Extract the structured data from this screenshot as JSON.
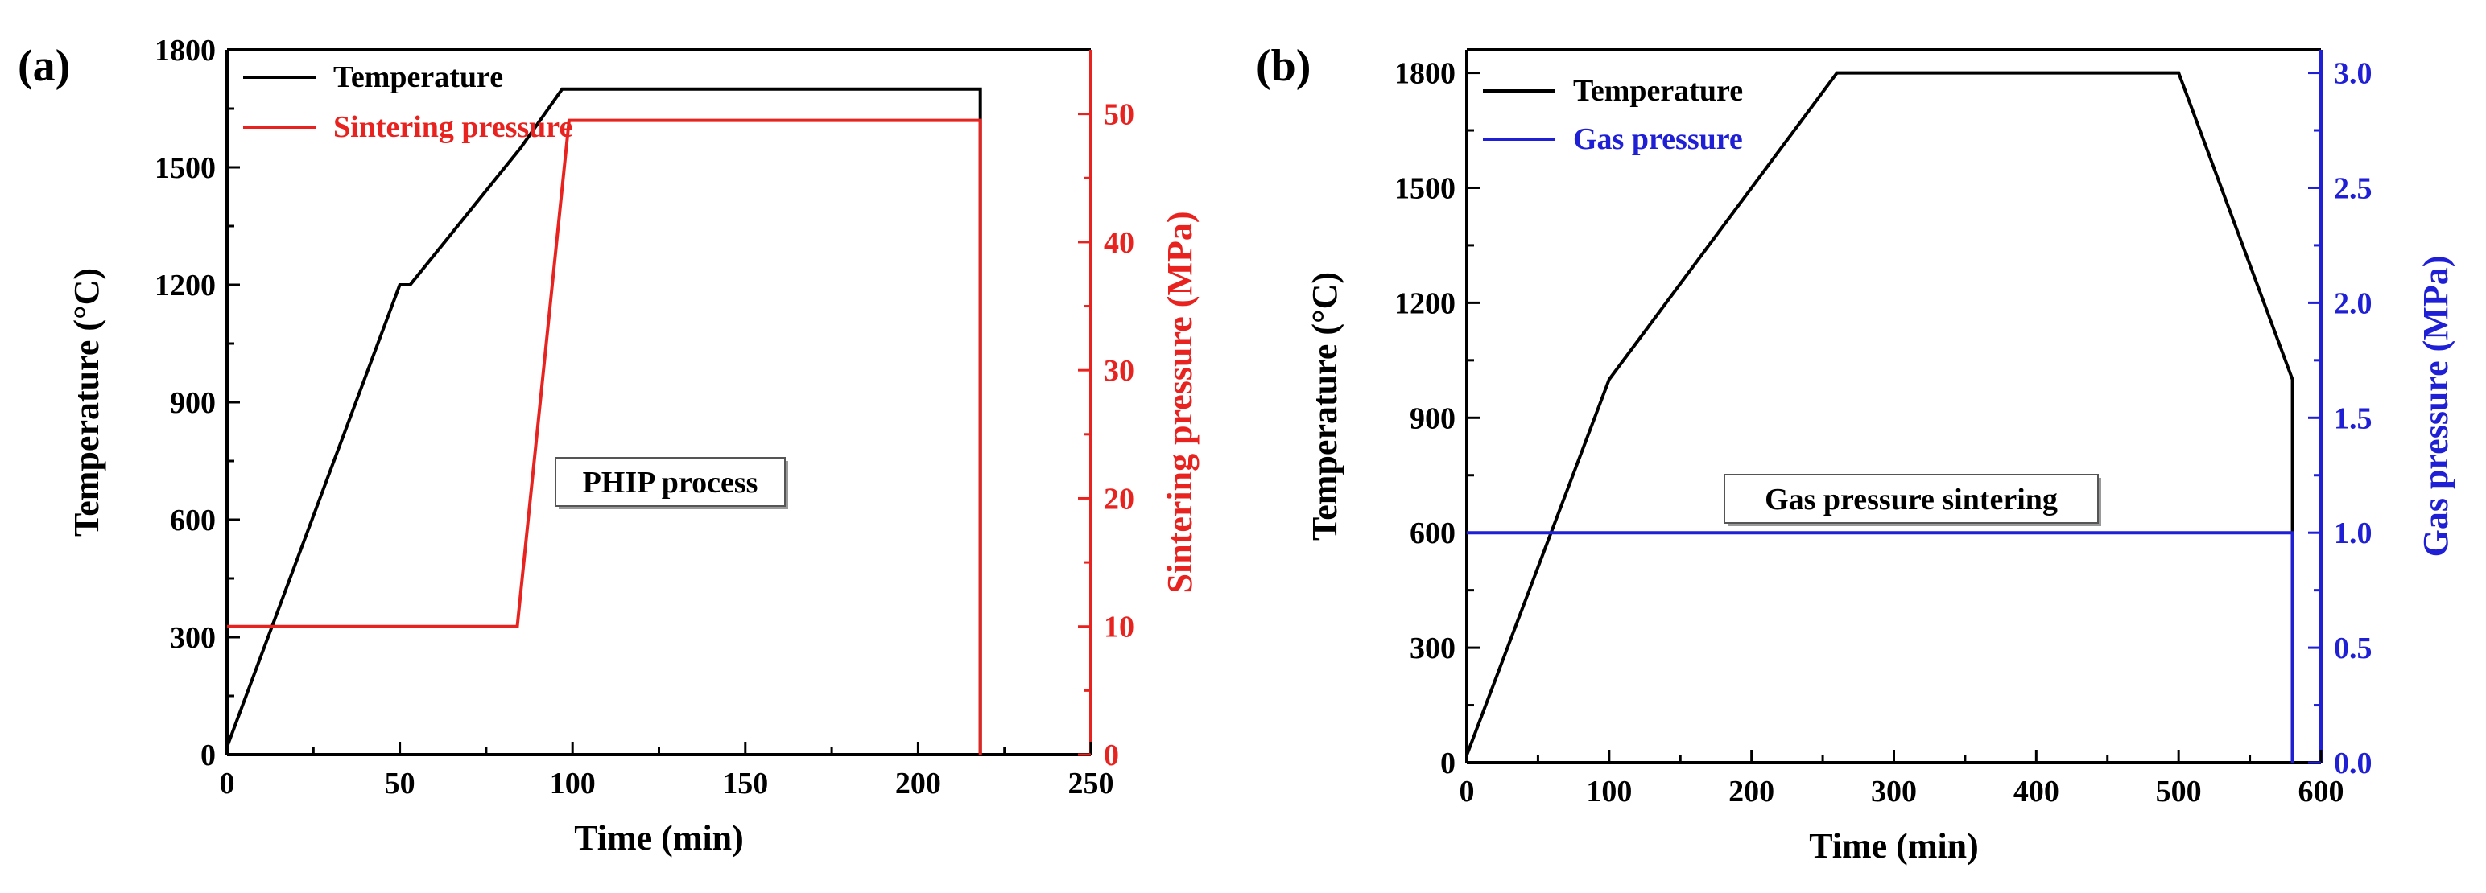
{
  "chart_data": [
    {
      "type": "line",
      "panel_label": "(a)",
      "xlabel": "Time (min)",
      "ylabel": "Temperature (°C)",
      "y2label": "Sintering pressure (MPa)",
      "xlim": [
        0,
        250
      ],
      "ylim": [
        0,
        1800
      ],
      "y2lim": [
        0,
        55
      ],
      "xticks": [
        "0",
        "50",
        "100",
        "150",
        "200",
        "250"
      ],
      "yticks": [
        "0",
        "300",
        "600",
        "900",
        "1200",
        "1500",
        "1800"
      ],
      "y2ticks": [
        "0",
        "10",
        "20",
        "30",
        "40",
        "50"
      ],
      "annotation": "PHIP process",
      "legend_location": "top-left",
      "series": [
        {
          "name": "Temperature",
          "axis": "left",
          "color": "#000000",
          "points": [
            [
              0,
              20
            ],
            [
              50,
              1200
            ],
            [
              53,
              1200
            ],
            [
              85,
              1550
            ],
            [
              97,
              1700
            ],
            [
              218,
              1700
            ],
            [
              218,
              0
            ]
          ]
        },
        {
          "name": "Sintering pressure",
          "axis": "right",
          "color": "#e8231f",
          "points": [
            [
              0,
              10
            ],
            [
              84,
              10
            ],
            [
              99,
              49.5
            ],
            [
              218,
              49.5
            ],
            [
              218,
              0
            ]
          ]
        }
      ]
    },
    {
      "type": "line",
      "panel_label": "(b)",
      "xlabel": "Time (min)",
      "ylabel": "Temperature (°C)",
      "y2label": "Gas pressure (MPa)",
      "xlim": [
        0,
        600
      ],
      "ylim": [
        0,
        1860
      ],
      "y2lim": [
        0,
        3.1
      ],
      "xticks": [
        "0",
        "100",
        "200",
        "300",
        "400",
        "500",
        "600"
      ],
      "yticks": [
        "0",
        "300",
        "600",
        "900",
        "1200",
        "1500",
        "1800"
      ],
      "y2ticks": [
        "0.0",
        "0.5",
        "1.0",
        "1.5",
        "2.0",
        "2.5",
        "3.0"
      ],
      "annotation": "Gas pressure sintering",
      "legend_location": "top-left",
      "series": [
        {
          "name": "Temperature",
          "axis": "left",
          "color": "#000000",
          "points": [
            [
              0,
              20
            ],
            [
              100,
              1000
            ],
            [
              260,
              1800
            ],
            [
              500,
              1800
            ],
            [
              580,
              1000
            ],
            [
              580,
              0
            ]
          ]
        },
        {
          "name": "Gas pressure",
          "axis": "right",
          "color": "#1f1fd6",
          "points": [
            [
              0,
              1.0
            ],
            [
              580,
              1.0
            ],
            [
              580,
              0
            ]
          ]
        }
      ]
    }
  ]
}
